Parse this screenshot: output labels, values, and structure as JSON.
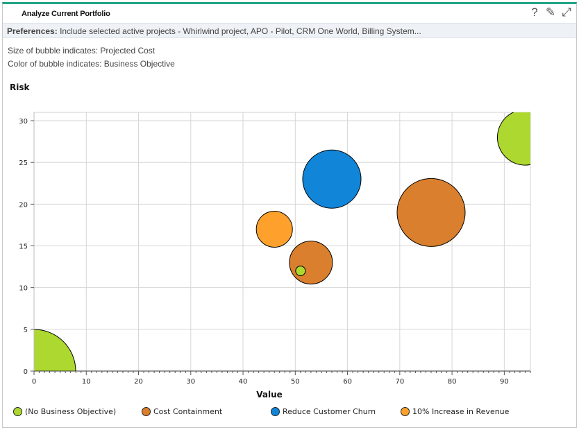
{
  "portlet": {
    "title": "Analyze Current Portfolio",
    "accent_color": "#1fa486",
    "tools": [
      {
        "icon": "help-icon",
        "glyph": "?"
      },
      {
        "icon": "edit-pencil-icon",
        "glyph": "✎"
      },
      {
        "icon": "maximize-icon",
        "glyph": "⤢"
      }
    ]
  },
  "preferences": {
    "label": "Preferences:",
    "text": "Include selected active projects - Whirlwind project, APO - Pilot, CRM One World, Billing System..."
  },
  "notes": {
    "size_note": "Size of bubble indicates: Projected Cost",
    "color_note": "Color of bubble indicates: Business Objective"
  },
  "chart_data": {
    "type": "bubble",
    "xlabel": "Value",
    "ylabel": "Risk",
    "xlim": [
      0,
      95
    ],
    "ylim": [
      0,
      31
    ],
    "xticks": [
      0,
      10,
      20,
      30,
      40,
      50,
      60,
      70,
      80,
      90
    ],
    "yticks": [
      0,
      5,
      10,
      15,
      20,
      25,
      30
    ],
    "grid": true,
    "legend_position": "bottom",
    "series": [
      {
        "name": "(No Business Objective)",
        "color": "#acd82f",
        "points": [
          {
            "x": 0,
            "y": 0,
            "size": 60
          },
          {
            "x": 94,
            "y": 28,
            "size": 40
          },
          {
            "x": 51,
            "y": 12,
            "size": 7
          }
        ]
      },
      {
        "name": "Cost Containment",
        "color": "#d97f2d",
        "points": [
          {
            "x": 76,
            "y": 19,
            "size": 49
          },
          {
            "x": 53,
            "y": 13,
            "size": 31
          }
        ]
      },
      {
        "name": "Reduce Customer Churn",
        "color": "#1185d8",
        "points": [
          {
            "x": 57,
            "y": 23,
            "size": 42
          }
        ]
      },
      {
        "name": "10% Increase in Revenue",
        "color": "#fea12c",
        "points": [
          {
            "x": 46,
            "y": 17,
            "size": 26
          }
        ]
      }
    ]
  }
}
